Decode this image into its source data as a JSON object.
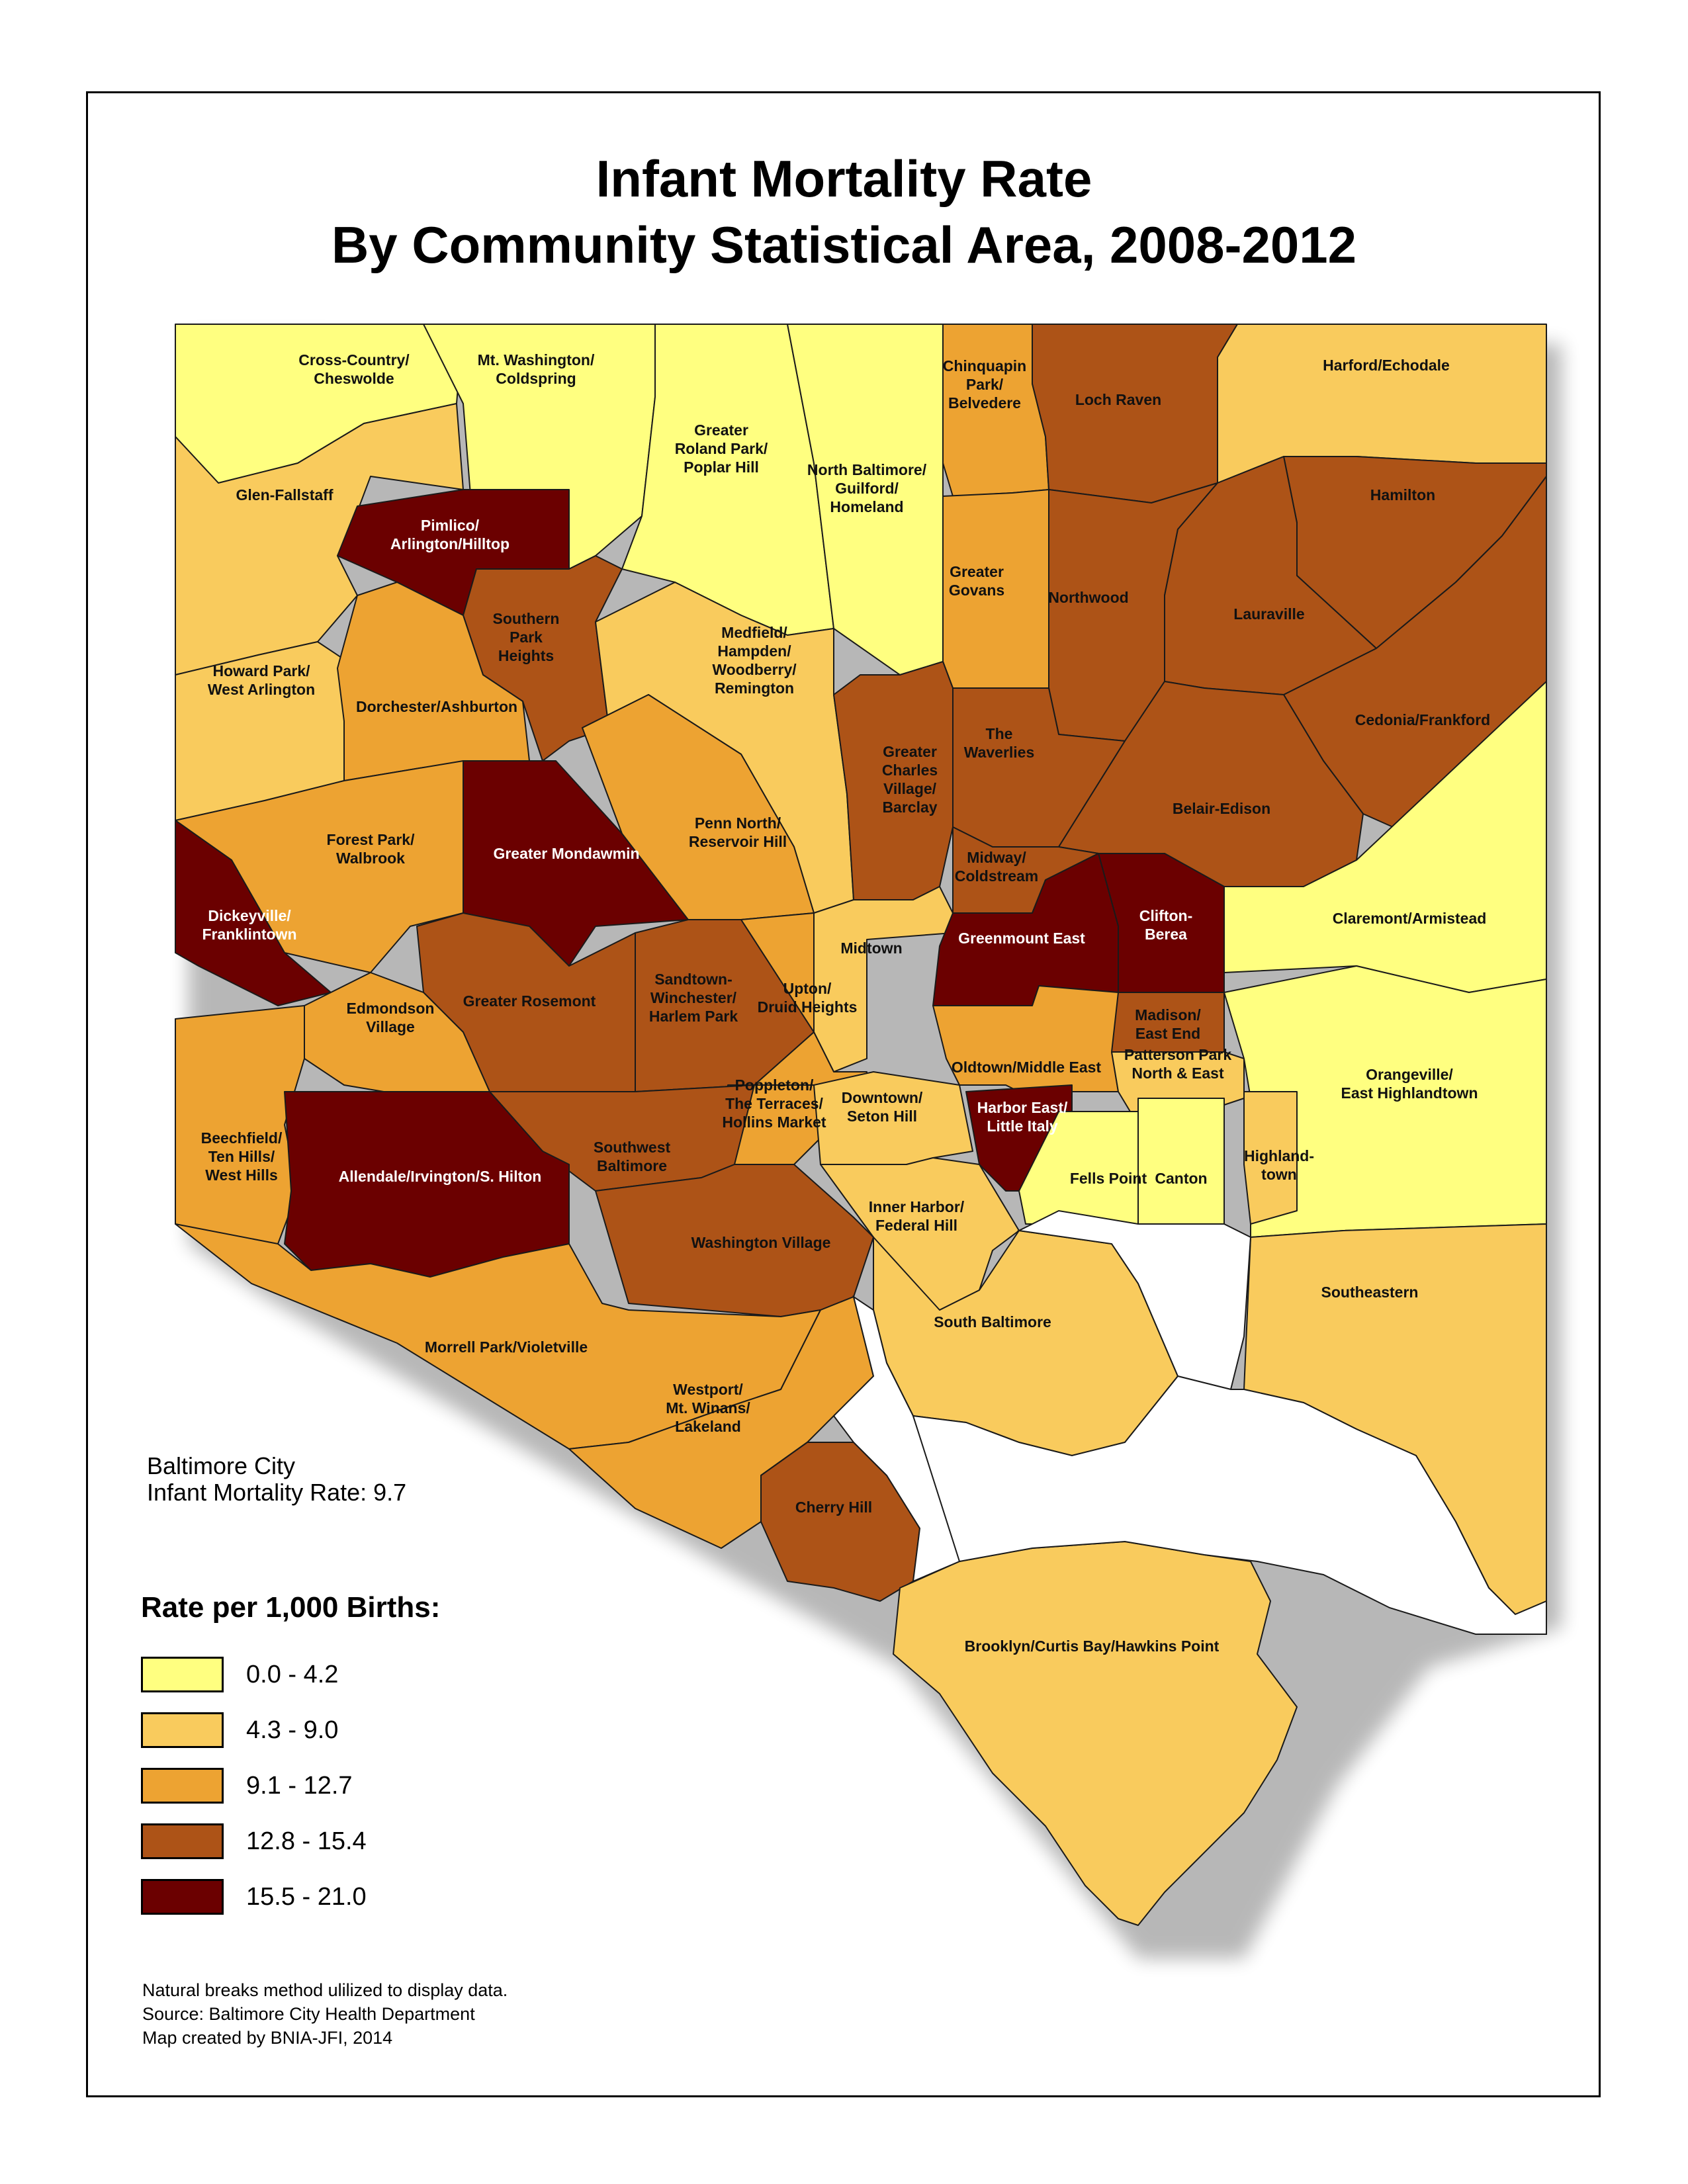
{
  "title": {
    "line1": "Infant Mortality Rate",
    "line2": "By Community Statistical Area, 2008-2012"
  },
  "city_summary": {
    "line1": "Baltimore City",
    "line2": "Infant Mortality Rate: 9.7"
  },
  "legend": {
    "title": "Rate per 1,000 Births:",
    "classes": [
      {
        "label": "0.0 - 4.2",
        "color": "#ffff80"
      },
      {
        "label": "4.3 - 9.0",
        "color": "#f9cb5d"
      },
      {
        "label": "9.1 - 12.7",
        "color": "#eda332"
      },
      {
        "label": "12.8 - 15.4",
        "color": "#ad5317"
      },
      {
        "label": "15.5 - 21.0",
        "color": "#6b0000"
      }
    ]
  },
  "notes": [
    "Natural breaks method ulilized to display data.",
    "Source: Baltimore City Health Department",
    "Map created by BNIA-JFI, 2014"
  ],
  "regions": [
    {
      "name": "Cross-Country/ Cheswolde",
      "lines": [
        "Cross-Country/",
        "Cheswolde"
      ],
      "class": 0
    },
    {
      "name": "Mt. Washington/ Coldspring",
      "lines": [
        "Mt. Washington/",
        "Coldspring"
      ],
      "class": 0
    },
    {
      "name": "Greater Roland Park/ Poplar Hill",
      "lines": [
        "Greater",
        "Roland Park/",
        "Poplar Hill"
      ],
      "class": 0
    },
    {
      "name": "North Baltimore/ Guilford/ Homeland",
      "lines": [
        "North Baltimore/",
        "Guilford/",
        "Homeland"
      ],
      "class": 0
    },
    {
      "name": "Chinquapin Park/ Belvedere",
      "lines": [
        "Chinquapin",
        "Park/",
        "Belvedere"
      ],
      "class": 2
    },
    {
      "name": "Loch Raven",
      "lines": [
        "Loch Raven"
      ],
      "class": 3
    },
    {
      "name": "Harford/Echodale",
      "lines": [
        "Harford/Echodale"
      ],
      "class": 1
    },
    {
      "name": "Glen-Fallstaff",
      "lines": [
        "Glen-Fallstaff"
      ],
      "class": 1
    },
    {
      "name": "Pimlico/ Arlington/Hilltop",
      "lines": [
        "Pimlico/",
        "Arlington/Hilltop"
      ],
      "class": 4
    },
    {
      "name": "Hamilton",
      "lines": [
        "Hamilton"
      ],
      "class": 3
    },
    {
      "name": "Southern Park Heights",
      "lines": [
        "Southern",
        "Park",
        "Heights"
      ],
      "class": 3
    },
    {
      "name": "Greater Govans",
      "lines": [
        "Greater",
        "Govans"
      ],
      "class": 2
    },
    {
      "name": "Northwood",
      "lines": [
        "Northwood"
      ],
      "class": 3
    },
    {
      "name": "Lauraville",
      "lines": [
        "Lauraville"
      ],
      "class": 3
    },
    {
      "name": "Howard Park/ West Arlington",
      "lines": [
        "Howard Park/",
        "West Arlington"
      ],
      "class": 1
    },
    {
      "name": "Medfield/ Hampden/ Woodberry/ Remington",
      "lines": [
        "Medfield/",
        "Hampden/",
        "Woodberry/",
        "Remington"
      ],
      "class": 1
    },
    {
      "name": "Dorchester/Ashburton",
      "lines": [
        "Dorchester/Ashburton"
      ],
      "class": 2
    },
    {
      "name": "The Waverlies",
      "lines": [
        "The",
        "Waverlies"
      ],
      "class": 3
    },
    {
      "name": "Cedonia/Frankford",
      "lines": [
        "Cedonia/Frankford"
      ],
      "class": 3
    },
    {
      "name": "Greater Charles Village/ Barclay",
      "lines": [
        "Greater",
        "Charles",
        "Village/",
        "Barclay"
      ],
      "class": 3
    },
    {
      "name": "Belair-Edison",
      "lines": [
        "Belair-Edison"
      ],
      "class": 3
    },
    {
      "name": "Forest Park/ Walbrook",
      "lines": [
        "Forest Park/",
        "Walbrook"
      ],
      "class": 2
    },
    {
      "name": "Greater Mondawmin",
      "lines": [
        "Greater Mondawmin"
      ],
      "class": 4
    },
    {
      "name": "Penn North/ Reservoir Hill",
      "lines": [
        "Penn North/",
        "Reservoir Hill"
      ],
      "class": 2
    },
    {
      "name": "Midway/ Coldstream",
      "lines": [
        "Midway/",
        "Coldstream"
      ],
      "class": 3
    },
    {
      "name": "Clifton-Berea",
      "lines": [
        "Clifton-",
        "Berea"
      ],
      "class": 4
    },
    {
      "name": "Claremont/Armistead",
      "lines": [
        "Claremont/Armistead"
      ],
      "class": 0
    },
    {
      "name": "Dickeyville/ Franklintown",
      "lines": [
        "Dickeyville/",
        "Franklintown"
      ],
      "class": 4
    },
    {
      "name": "Midtown",
      "lines": [
        "Midtown"
      ],
      "class": 1
    },
    {
      "name": "Greenmount East",
      "lines": [
        "Greenmount East"
      ],
      "class": 4
    },
    {
      "name": "Greater Rosemont",
      "lines": [
        "Greater Rosemont"
      ],
      "class": 3
    },
    {
      "name": "Sandtown-Winchester/ Harlem Park",
      "lines": [
        "Sandtown-",
        "Winchester/",
        "Harlem Park"
      ],
      "class": 3
    },
    {
      "name": "Upton/ Druid Heights",
      "lines": [
        "Upton/",
        "Druid Heights"
      ],
      "class": 2
    },
    {
      "name": "Edmondson Village",
      "lines": [
        "Edmondson",
        "Village"
      ],
      "class": 2
    },
    {
      "name": "Madison/ East End",
      "lines": [
        "Madison/",
        "East End"
      ],
      "class": 3
    },
    {
      "name": "Oldtown/Middle East",
      "lines": [
        "Oldtown/Middle East"
      ],
      "class": 2
    },
    {
      "name": "Patterson Park North & East",
      "lines": [
        "Patterson Park",
        "North & East"
      ],
      "class": 1
    },
    {
      "name": "Orangeville/ East Highlandtown",
      "lines": [
        "Orangeville/",
        "East Highlandtown"
      ],
      "class": 0
    },
    {
      "name": "Poppleton/ The Terraces/ Hollins Market",
      "lines": [
        "Poppleton/",
        "The Terraces/",
        "Hollins Market"
      ],
      "class": 2
    },
    {
      "name": "Downtown/ Seton Hill",
      "lines": [
        "Downtown/",
        "Seton Hill"
      ],
      "class": 1
    },
    {
      "name": "Harbor East/ Little Italy",
      "lines": [
        "Harbor East/",
        "Little Italy"
      ],
      "class": 4
    },
    {
      "name": "Beechfield/ Ten Hills/ West Hills",
      "lines": [
        "Beechfield/",
        "Ten Hills/",
        "West Hills"
      ],
      "class": 2
    },
    {
      "name": "Southwest Baltimore",
      "lines": [
        "Southwest",
        "Baltimore"
      ],
      "class": 3
    },
    {
      "name": "Allendale/Irvington/S. Hilton",
      "lines": [
        "Allendale/Irvington/S. Hilton"
      ],
      "class": 4
    },
    {
      "name": "Highlandtown",
      "lines": [
        "Highland-",
        "town"
      ],
      "class": 1
    },
    {
      "name": "Fells Point",
      "lines": [
        "Fells Point"
      ],
      "class": 0
    },
    {
      "name": "Canton",
      "lines": [
        "Canton"
      ],
      "class": 0
    },
    {
      "name": "Inner Harbor/ Federal Hill",
      "lines": [
        "Inner Harbor/",
        "Federal Hill"
      ],
      "class": 1
    },
    {
      "name": "Washington Village",
      "lines": [
        "Washington Village"
      ],
      "class": 3
    },
    {
      "name": "Southeastern",
      "lines": [
        "Southeastern"
      ],
      "class": 1
    },
    {
      "name": "South Baltimore",
      "lines": [
        "South Baltimore"
      ],
      "class": 1
    },
    {
      "name": "Morrell Park/Violetville",
      "lines": [
        "Morrell Park/Violetville"
      ],
      "class": 2
    },
    {
      "name": "Westport/ Mt. Winans/ Lakeland",
      "lines": [
        "Westport/",
        "Mt. Winans/",
        "Lakeland"
      ],
      "class": 2
    },
    {
      "name": "Cherry Hill",
      "lines": [
        "Cherry Hill"
      ],
      "class": 3
    },
    {
      "name": "Brooklyn/Curtis Bay/Hawkins Point",
      "lines": [
        "Brooklyn/Curtis Bay/Hawkins Point"
      ],
      "class": 1
    }
  ]
}
